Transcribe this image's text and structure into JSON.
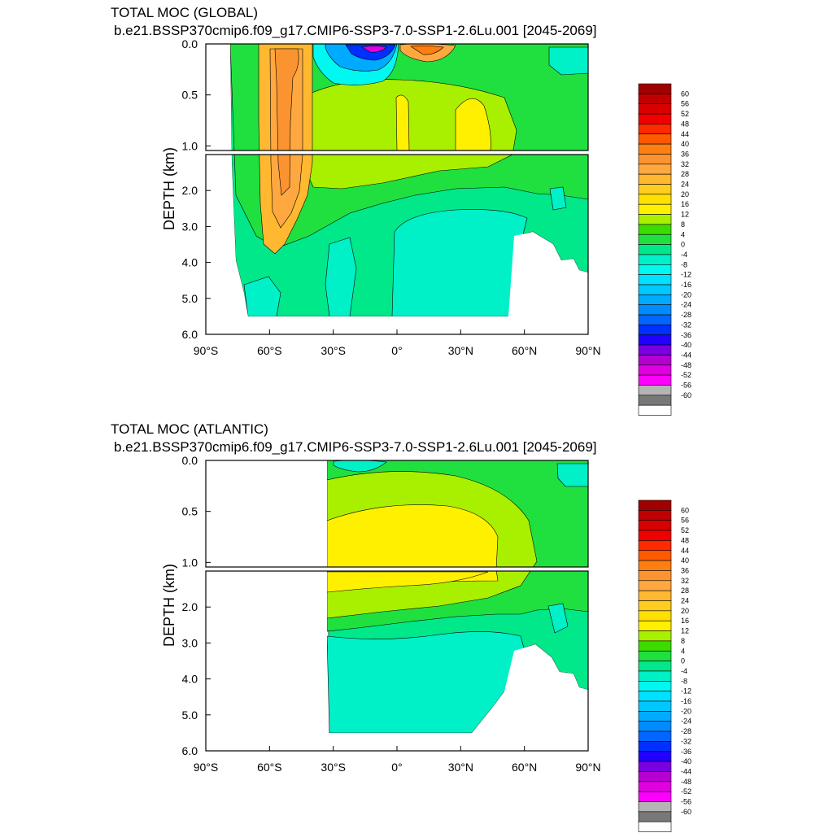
{
  "colorbar_labels": [
    "60",
    "56",
    "52",
    "48",
    "44",
    "40",
    "36",
    "32",
    "28",
    "24",
    "20",
    "16",
    "12",
    "8",
    "4",
    "0",
    "-4",
    "-8",
    "-12",
    "-16",
    "-20",
    "-24",
    "-28",
    "-32",
    "-36",
    "-40",
    "-44",
    "-48",
    "-52",
    "-56",
    "-60"
  ],
  "colorbar_colors": [
    "#a00000",
    "#c00000",
    "#d80000",
    "#f00000",
    "#ff2a00",
    "#ff5a00",
    "#ff7f10",
    "#fb9430",
    "#ffa840",
    "#ffb830",
    "#ffcc20",
    "#ffe000",
    "#fff000",
    "#a8f000",
    "#3cdc00",
    "#20e040",
    "#00e88a",
    "#00f0c8",
    "#00f8f0",
    "#00e0ff",
    "#00c8ff",
    "#00aaff",
    "#008cff",
    "#0066ff",
    "#0030ff",
    "#2200ff",
    "#7a00e0",
    "#b400d0",
    "#e000e0",
    "#ff00ff",
    "#b4b4b4",
    "#787878",
    "#ffffff"
  ],
  "chart_data": [
    {
      "type": "heatmap",
      "title": "TOTAL MOC (GLOBAL)",
      "subtitle": "b.e21.BSSP370cmip6.f09_g17.CMIP6-SSP3-7.0-SSP1-2.6Lu.001 [2045-2069]",
      "xlabel": "",
      "ylabel": "DEPTH (km)",
      "xlim": [
        -90,
        90
      ],
      "ylim": [
        6.0,
        0.0
      ],
      "x_ticks": [
        "90°S",
        "60°S",
        "30°S",
        "0°",
        "30°N",
        "60°N",
        "90°N"
      ],
      "y_ticks_upper": [
        "0.0",
        "0.5",
        "1.0"
      ],
      "y_ticks_lower": [
        "2.0",
        "3.0",
        "4.0",
        "5.0",
        "6.0"
      ],
      "colorbar_range": [
        -60,
        60
      ],
      "colorbar_interval": 4,
      "features": [
        {
          "name": "southern ocean cell",
          "lat": [
            -58,
            -42
          ],
          "depth_km": [
            0.0,
            3.6
          ],
          "max_value": 36
        },
        {
          "name": "tropical negative cell",
          "lat": [
            -30,
            0
          ],
          "depth_km": [
            0.0,
            0.3
          ],
          "min_value": -52
        },
        {
          "name": "northern tropical cell",
          "lat": [
            5,
            25
          ],
          "depth_km": [
            0.0,
            0.2
          ],
          "max_value": 36
        },
        {
          "name": "upper positive cell",
          "lat": [
            -30,
            55
          ],
          "depth_km": [
            0.5,
            1.8
          ],
          "max_value": 16
        },
        {
          "name": "deep negative cell",
          "lat": [
            0,
            60
          ],
          "depth_km": [
            2.5,
            5.5
          ],
          "min_value": -4
        }
      ]
    },
    {
      "type": "heatmap",
      "title": "TOTAL MOC (ATLANTIC)",
      "subtitle": "b.e21.BSSP370cmip6.f09_g17.CMIP6-SSP3-7.0-SSP1-2.6Lu.001 [2045-2069]",
      "xlabel": "",
      "ylabel": "DEPTH (km)",
      "xlim": [
        -90,
        90
      ],
      "ylim": [
        6.0,
        0.0
      ],
      "x_ticks": [
        "90°S",
        "60°S",
        "30°S",
        "0°",
        "30°N",
        "60°N",
        "90°N"
      ],
      "y_ticks_upper": [
        "0.0",
        "0.5",
        "1.0"
      ],
      "y_ticks_lower": [
        "2.0",
        "3.0",
        "4.0",
        "5.0",
        "6.0"
      ],
      "colorbar_range": [
        -60,
        60
      ],
      "colorbar_interval": 4,
      "features": [
        {
          "name": "upper overturning cell",
          "lat": [
            -34,
            55
          ],
          "depth_km": [
            0.5,
            1.6
          ],
          "max_value": 16
        },
        {
          "name": "surface negative cell",
          "lat": [
            -30,
            -10
          ],
          "depth_km": [
            0.0,
            0.1
          ],
          "min_value": -4
        },
        {
          "name": "deep negative cell",
          "lat": [
            -34,
            55
          ],
          "depth_km": [
            2.7,
            5.5
          ],
          "min_value": -4
        }
      ]
    }
  ]
}
